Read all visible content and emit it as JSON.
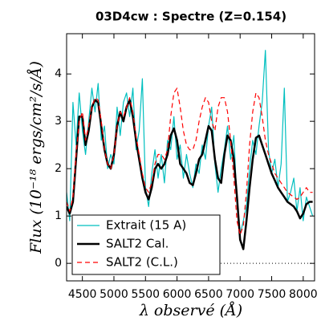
{
  "chart_data": {
    "type": "line",
    "title": "03D4cw : Spectre (Z=0.154)",
    "xlabel": "λ observé (Å)",
    "ylabel": "Flux (10⁻¹⁸ ergs/cm²/s/Å)",
    "x": [
      4250,
      4300,
      4350,
      4400,
      4450,
      4500,
      4550,
      4600,
      4650,
      4700,
      4750,
      4800,
      4850,
      4900,
      4950,
      5000,
      5050,
      5100,
      5150,
      5200,
      5250,
      5300,
      5350,
      5400,
      5450,
      5500,
      5550,
      5600,
      5650,
      5700,
      5750,
      5800,
      5850,
      5900,
      5950,
      6000,
      6050,
      6100,
      6150,
      6200,
      6250,
      6300,
      6350,
      6400,
      6450,
      6500,
      6550,
      6600,
      6650,
      6700,
      6750,
      6800,
      6850,
      6900,
      6950,
      7000,
      7050,
      7100,
      7150,
      7200,
      7250,
      7300,
      7350,
      7400,
      7450,
      7500,
      7550,
      7600,
      7650,
      7700,
      7750,
      7800,
      7850,
      7900,
      7950,
      8000,
      8050,
      8100,
      8150
    ],
    "series": [
      {
        "name": "Extrait (15 A)",
        "color": "#00bfbf",
        "dash": "solid",
        "width": 1.2,
        "values": [
          1.5,
          0.9,
          3.4,
          2.5,
          3.6,
          2.8,
          2.3,
          3.0,
          3.7,
          3.2,
          3.8,
          2.6,
          2.9,
          2.0,
          2.3,
          2.1,
          3.3,
          2.7,
          3.4,
          3.6,
          3.1,
          3.7,
          2.4,
          2.8,
          3.9,
          1.6,
          1.2,
          1.9,
          2.4,
          1.8,
          2.3,
          1.7,
          2.6,
          2.4,
          3.1,
          2.2,
          2.5,
          1.8,
          2.3,
          1.9,
          1.6,
          2.1,
          1.9,
          2.5,
          2.2,
          2.9,
          3.3,
          2.1,
          1.5,
          2.0,
          2.4,
          2.9,
          2.2,
          2.7,
          1.3,
          0.6,
          0.9,
          1.2,
          2.0,
          2.6,
          2.3,
          2.9,
          3.4,
          4.5,
          2.4,
          1.9,
          2.2,
          1.6,
          2.1,
          3.7,
          1.3,
          1.5,
          1.8,
          1.1,
          1.6,
          0.9,
          1.4,
          1.2,
          1.0
        ]
      },
      {
        "name": "SALT2 Cal.",
        "color": "#000000",
        "dash": "solid",
        "width": 2.5,
        "values": [
          1.2,
          1.05,
          1.3,
          2.2,
          3.1,
          3.1,
          2.5,
          2.8,
          3.3,
          3.45,
          3.4,
          2.9,
          2.4,
          2.1,
          2.0,
          2.3,
          2.9,
          3.2,
          3.0,
          3.3,
          3.45,
          3.1,
          2.6,
          2.2,
          1.8,
          1.5,
          1.35,
          1.6,
          2.0,
          2.1,
          2.0,
          2.1,
          2.3,
          2.7,
          2.85,
          2.6,
          2.1,
          2.0,
          1.9,
          1.7,
          1.65,
          1.9,
          2.2,
          2.3,
          2.6,
          2.9,
          2.8,
          2.2,
          1.8,
          1.7,
          2.3,
          2.7,
          2.6,
          2.2,
          1.4,
          0.5,
          0.3,
          0.9,
          1.6,
          2.2,
          2.65,
          2.7,
          2.5,
          2.3,
          2.1,
          1.9,
          1.75,
          1.6,
          1.5,
          1.4,
          1.3,
          1.25,
          1.2,
          1.1,
          0.95,
          1.05,
          1.25,
          1.3,
          1.3
        ]
      },
      {
        "name": "SALT2 (C.L.)",
        "color": "#ff0000",
        "dash": "dashed",
        "width": 1.2,
        "values": [
          1.3,
          1.1,
          1.4,
          2.3,
          3.0,
          3.2,
          2.6,
          2.9,
          3.3,
          3.5,
          3.45,
          3.0,
          2.4,
          2.1,
          2.0,
          2.3,
          2.9,
          3.2,
          3.1,
          3.3,
          3.5,
          3.2,
          2.7,
          2.3,
          1.9,
          1.6,
          1.5,
          1.7,
          2.1,
          2.3,
          2.3,
          2.2,
          2.4,
          3.1,
          3.6,
          3.7,
          3.3,
          2.8,
          2.5,
          2.4,
          2.4,
          2.6,
          3.0,
          3.3,
          3.5,
          3.4,
          3.0,
          2.8,
          3.3,
          3.5,
          3.5,
          3.2,
          2.6,
          1.8,
          0.9,
          0.6,
          0.8,
          1.5,
          2.5,
          3.2,
          3.6,
          3.5,
          3.1,
          2.6,
          2.3,
          2.1,
          1.9,
          1.8,
          1.7,
          1.6,
          1.5,
          1.45,
          1.4,
          1.35,
          1.4,
          1.5,
          1.6,
          1.5,
          1.5
        ]
      }
    ],
    "xlim": [
      4250,
      8180
    ],
    "ylim": [
      -0.37,
      4.85
    ],
    "xticks": [
      4500,
      5000,
      5500,
      6000,
      6500,
      7000,
      7500,
      8000
    ],
    "yticks": [
      0,
      1,
      2,
      3,
      4
    ],
    "hline": 0,
    "legend": "lower left"
  }
}
